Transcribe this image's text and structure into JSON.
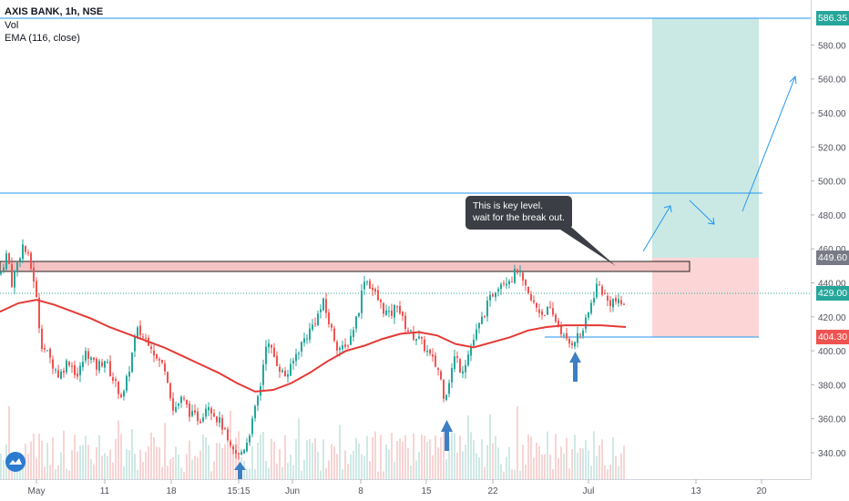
{
  "header": {
    "title": "AXIS BANK, 1h, NSE",
    "vol_label": "Vol",
    "ema_label": "EMA (116, close)"
  },
  "annotation": {
    "line1": "This is key level.",
    "line2": "wait for the break out."
  },
  "price_badges": {
    "target": "586.35",
    "resistance": "449.60",
    "last": "429.00",
    "stop": "404.30"
  },
  "colors": {
    "up": "#26a69a",
    "down": "#ef5350",
    "ema": "#e53935",
    "hline": "#2196f3",
    "profit_zone": "#cbe9e4",
    "loss_zone": "#fcd6d6",
    "arrow": "#3d7fc4"
  },
  "chart_data": {
    "type": "candlestick",
    "symbol": "AXIS BANK",
    "interval": "1h",
    "exchange": "NSE",
    "x_tick_labels": [
      "May",
      "11",
      "18",
      "15:15",
      "Jun",
      "8",
      "15",
      "22",
      "Jul",
      "13",
      "20"
    ],
    "y_tick_labels": [
      "340.00",
      "360.00",
      "380.00",
      "400.00",
      "420.00",
      "440.00",
      "460.00",
      "480.00",
      "500.00",
      "520.00",
      "540.00",
      "560.00",
      "580.00"
    ],
    "ylim": [
      327,
      590
    ],
    "key_levels": {
      "target": 586.35,
      "upper_level": 487,
      "resistance_zone": [
        443,
        450
      ],
      "resistance": 449.6,
      "last_price": 429.0,
      "stop": 404.3
    },
    "price_path": [
      [
        0,
        445
      ],
      [
        8,
        458
      ],
      [
        13,
        440
      ],
      [
        18,
        450
      ],
      [
        25,
        462
      ],
      [
        31,
        455
      ],
      [
        38,
        440
      ],
      [
        45,
        405
      ],
      [
        55,
        395
      ],
      [
        65,
        385
      ],
      [
        75,
        395
      ],
      [
        85,
        385
      ],
      [
        95,
        400
      ],
      [
        105,
        390
      ],
      [
        115,
        395
      ],
      [
        125,
        382
      ],
      [
        135,
        372
      ],
      [
        142,
        390
      ],
      [
        150,
        412
      ],
      [
        158,
        408
      ],
      [
        165,
        405
      ],
      [
        172,
        395
      ],
      [
        182,
        390
      ],
      [
        190,
        365
      ],
      [
        200,
        372
      ],
      [
        210,
        362
      ],
      [
        220,
        360
      ],
      [
        228,
        370
      ],
      [
        236,
        362
      ],
      [
        245,
        355
      ],
      [
        252,
        342
      ],
      [
        262,
        338
      ],
      [
        270,
        345
      ],
      [
        278,
        360
      ],
      [
        286,
        380
      ],
      [
        292,
        405
      ],
      [
        298,
        400
      ],
      [
        305,
        392
      ],
      [
        312,
        385
      ],
      [
        318,
        388
      ],
      [
        325,
        398
      ],
      [
        332,
        405
      ],
      [
        340,
        412
      ],
      [
        348,
        420
      ],
      [
        355,
        428
      ],
      [
        362,
        415
      ],
      [
        370,
        403
      ],
      [
        378,
        400
      ],
      [
        386,
        410
      ],
      [
        394,
        425
      ],
      [
        400,
        443
      ],
      [
        407,
        438
      ],
      [
        413,
        432
      ],
      [
        420,
        425
      ],
      [
        428,
        420
      ],
      [
        436,
        428
      ],
      [
        442,
        418
      ],
      [
        450,
        410
      ],
      [
        458,
        408
      ],
      [
        466,
        402
      ],
      [
        474,
        395
      ],
      [
        482,
        388
      ],
      [
        488,
        372
      ],
      [
        494,
        385
      ],
      [
        500,
        398
      ],
      [
        506,
        388
      ],
      [
        512,
        395
      ],
      [
        518,
        404
      ],
      [
        524,
        412
      ],
      [
        530,
        420
      ],
      [
        536,
        428
      ],
      [
        542,
        435
      ],
      [
        548,
        440
      ],
      [
        555,
        442
      ],
      [
        562,
        443
      ],
      [
        568,
        448
      ],
      [
        575,
        438
      ],
      [
        582,
        430
      ],
      [
        588,
        426
      ],
      [
        595,
        422
      ],
      [
        602,
        424
      ],
      [
        610,
        418
      ],
      [
        616,
        412
      ],
      [
        620,
        406
      ],
      [
        626,
        404
      ],
      [
        632,
        408
      ],
      [
        638,
        410
      ],
      [
        644,
        418
      ],
      [
        650,
        430
      ],
      [
        656,
        440
      ],
      [
        662,
        434
      ],
      [
        668,
        428
      ],
      [
        674,
        430
      ],
      [
        680,
        427
      ],
      [
        687,
        429
      ]
    ],
    "ema": [
      [
        0,
        423
      ],
      [
        20,
        428
      ],
      [
        40,
        430
      ],
      [
        60,
        427
      ],
      [
        80,
        423
      ],
      [
        100,
        419
      ],
      [
        120,
        414
      ],
      [
        140,
        410
      ],
      [
        160,
        406
      ],
      [
        180,
        402
      ],
      [
        200,
        397
      ],
      [
        220,
        392
      ],
      [
        240,
        387
      ],
      [
        260,
        381
      ],
      [
        280,
        376
      ],
      [
        300,
        377
      ],
      [
        320,
        381
      ],
      [
        340,
        387
      ],
      [
        360,
        394
      ],
      [
        380,
        400
      ],
      [
        400,
        403
      ],
      [
        420,
        407
      ],
      [
        440,
        410
      ],
      [
        460,
        411
      ],
      [
        480,
        409
      ],
      [
        500,
        404
      ],
      [
        520,
        402
      ],
      [
        540,
        405
      ],
      [
        560,
        408
      ],
      [
        580,
        412
      ],
      [
        600,
        414
      ],
      [
        620,
        415
      ],
      [
        640,
        415
      ],
      [
        660,
        415
      ],
      [
        687,
        414
      ]
    ]
  }
}
